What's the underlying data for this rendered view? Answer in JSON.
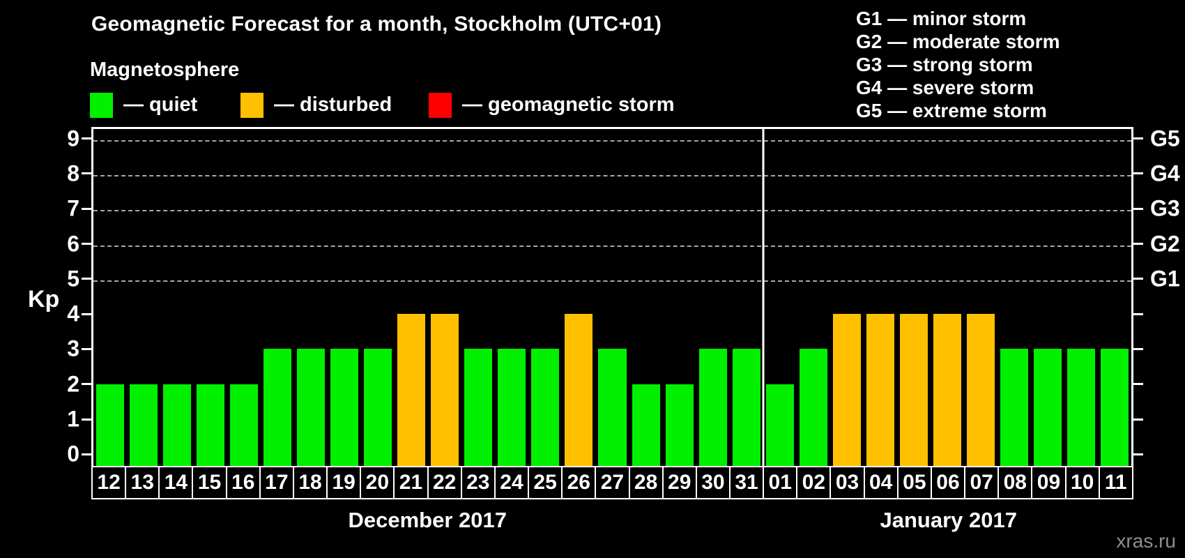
{
  "header": {
    "title": "Geomagnetic Forecast for a month, Stockholm (UTC+01)",
    "subtitle": "Magnetosphere",
    "legend": [
      {
        "name": "quiet",
        "label": "— quiet",
        "color": "#00f000"
      },
      {
        "name": "disturbed",
        "label": "— disturbed",
        "color": "#ffc000"
      },
      {
        "name": "geomagnetic-storm",
        "label": "— geomagnetic storm",
        "color": "#ff0000"
      }
    ],
    "g_legend": [
      "G1 — minor storm",
      "G2 — moderate storm",
      "G3 — strong storm",
      "G4 — severe storm",
      "G5 — extreme storm"
    ]
  },
  "chart_data": {
    "type": "bar",
    "title": "Geomagnetic Forecast for a month, Stockholm (UTC+01)",
    "ylabel": "Kp",
    "ylim": [
      -0.33,
      9.33
    ],
    "yticks": [
      0,
      1,
      2,
      3,
      4,
      5,
      6,
      7,
      8,
      9
    ],
    "gridlines_at": [
      5,
      6,
      7,
      8,
      9
    ],
    "grid": "dashed horizontal at G-storm levels only",
    "legend_position": "top",
    "right_axis": [
      {
        "kp": 5,
        "label": "G1"
      },
      {
        "kp": 6,
        "label": "G2"
      },
      {
        "kp": 7,
        "label": "G3"
      },
      {
        "kp": 8,
        "label": "G4"
      },
      {
        "kp": 9,
        "label": "G5"
      }
    ],
    "state_colors": {
      "quiet": "#00f000",
      "disturbed": "#ffc000",
      "storm": "#ff0000"
    },
    "months": [
      {
        "label": "December 2017",
        "days": [
          "12",
          "13",
          "14",
          "15",
          "16",
          "17",
          "18",
          "19",
          "20",
          "21",
          "22",
          "23",
          "24",
          "25",
          "26",
          "27",
          "28",
          "29",
          "30",
          "31"
        ],
        "kp": [
          2,
          2,
          2,
          2,
          2,
          3,
          3,
          3,
          3,
          4,
          4,
          3,
          3,
          3,
          4,
          3,
          2,
          2,
          3,
          3
        ],
        "states": [
          "quiet",
          "quiet",
          "quiet",
          "quiet",
          "quiet",
          "quiet",
          "quiet",
          "quiet",
          "quiet",
          "disturbed",
          "disturbed",
          "quiet",
          "quiet",
          "quiet",
          "disturbed",
          "quiet",
          "quiet",
          "quiet",
          "quiet",
          "quiet"
        ]
      },
      {
        "label": "January 2017",
        "days": [
          "01",
          "02",
          "03",
          "04",
          "05",
          "06",
          "07",
          "08",
          "09",
          "10",
          "11"
        ],
        "kp": [
          2,
          3,
          4,
          4,
          4,
          4,
          4,
          3,
          3,
          3,
          3
        ],
        "states": [
          "quiet",
          "quiet",
          "disturbed",
          "disturbed",
          "disturbed",
          "disturbed",
          "disturbed",
          "quiet",
          "quiet",
          "quiet",
          "quiet"
        ]
      }
    ]
  },
  "watermark": "xras.ru"
}
